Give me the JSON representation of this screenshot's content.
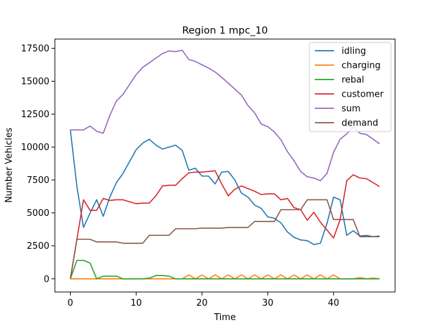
{
  "chart_data": {
    "type": "line",
    "title": "Region 1 mpc_10",
    "xlabel": "Time",
    "ylabel": "Number Vehicles",
    "xlim": [
      -2.35,
      49.35
    ],
    "ylim": [
      -1000,
      18200
    ],
    "xticks": [
      0,
      10,
      20,
      30,
      40
    ],
    "yticks": [
      0,
      2500,
      5000,
      7500,
      10000,
      12500,
      15000,
      17500
    ],
    "grid": false,
    "legend_position": "top-right",
    "x": [
      0,
      1,
      2,
      3,
      4,
      5,
      6,
      7,
      8,
      9,
      10,
      11,
      12,
      13,
      14,
      15,
      16,
      17,
      18,
      19,
      20,
      21,
      22,
      23,
      24,
      25,
      26,
      27,
      28,
      29,
      30,
      31,
      32,
      33,
      34,
      35,
      36,
      37,
      38,
      39,
      40,
      41,
      42,
      43,
      44,
      45,
      46,
      47
    ],
    "series": [
      {
        "name": "idling",
        "color": "#1f77b4",
        "values": [
          11300,
          7000,
          3900,
          5000,
          6000,
          4750,
          6200,
          7300,
          8000,
          8900,
          9800,
          10300,
          10600,
          10150,
          9850,
          10000,
          10150,
          9750,
          8250,
          8400,
          7800,
          7800,
          7200,
          8100,
          8150,
          7500,
          6500,
          6200,
          5600,
          5350,
          4700,
          4600,
          4250,
          3550,
          3150,
          2950,
          2900,
          2600,
          2700,
          4200,
          6200,
          6000,
          3300,
          3650,
          3250,
          3300,
          3200,
          3250
        ]
      },
      {
        "name": "charging",
        "color": "#ff7f0e",
        "values": [
          0,
          0,
          0,
          0,
          0,
          0,
          0,
          0,
          0,
          0,
          0,
          0,
          0,
          0,
          0,
          0,
          0,
          0,
          300,
          0,
          300,
          0,
          300,
          0,
          300,
          0,
          300,
          0,
          300,
          0,
          300,
          0,
          300,
          0,
          300,
          0,
          300,
          0,
          300,
          0,
          300,
          0,
          0,
          0,
          100,
          0,
          50,
          0
        ]
      },
      {
        "name": "rebal",
        "color": "#2ca02c",
        "values": [
          0,
          1400,
          1400,
          1200,
          0,
          200,
          200,
          200,
          0,
          0,
          0,
          0,
          50,
          250,
          250,
          200,
          0,
          0,
          0,
          0,
          0,
          0,
          0,
          0,
          0,
          0,
          0,
          0,
          0,
          0,
          0,
          0,
          0,
          0,
          0,
          0,
          0,
          0,
          0,
          0,
          0,
          0,
          0,
          0,
          0,
          0,
          0,
          0
        ]
      },
      {
        "name": "customer",
        "color": "#d62728",
        "values": [
          0,
          3000,
          6000,
          5200,
          5200,
          6100,
          5950,
          6000,
          6000,
          5850,
          5700,
          5750,
          5750,
          6300,
          7050,
          7100,
          7100,
          7600,
          8050,
          8100,
          8100,
          8150,
          8200,
          7200,
          6300,
          6800,
          7050,
          6850,
          6650,
          6400,
          6450,
          6450,
          6000,
          6100,
          5400,
          5250,
          4450,
          5050,
          4300,
          3700,
          3100,
          4500,
          7450,
          7900,
          7650,
          7600,
          7300,
          7000
        ]
      },
      {
        "name": "sum",
        "color": "#9467bd",
        "values": [
          11300,
          11300,
          11300,
          11600,
          11200,
          11050,
          12400,
          13500,
          14000,
          14750,
          15500,
          16050,
          16400,
          16750,
          17100,
          17300,
          17250,
          17350,
          16650,
          16500,
          16250,
          16000,
          15700,
          15300,
          14850,
          14400,
          13950,
          13150,
          12600,
          11750,
          11550,
          11150,
          10550,
          9650,
          8950,
          8150,
          7750,
          7650,
          7450,
          8000,
          9600,
          10600,
          11000,
          11550,
          11050,
          10950,
          10600,
          10250
        ]
      },
      {
        "name": "demand",
        "color": "#8c564b",
        "values": [
          0,
          3000,
          3000,
          3000,
          2800,
          2800,
          2800,
          2800,
          2700,
          2700,
          2700,
          2700,
          3300,
          3300,
          3300,
          3300,
          3800,
          3800,
          3800,
          3800,
          3850,
          3850,
          3850,
          3850,
          3900,
          3900,
          3900,
          3900,
          4350,
          4350,
          4350,
          4350,
          5250,
          5250,
          5250,
          5250,
          6000,
          6000,
          6000,
          6000,
          4500,
          4500,
          4500,
          4500,
          3200,
          3200,
          3200,
          3200
        ]
      }
    ]
  }
}
